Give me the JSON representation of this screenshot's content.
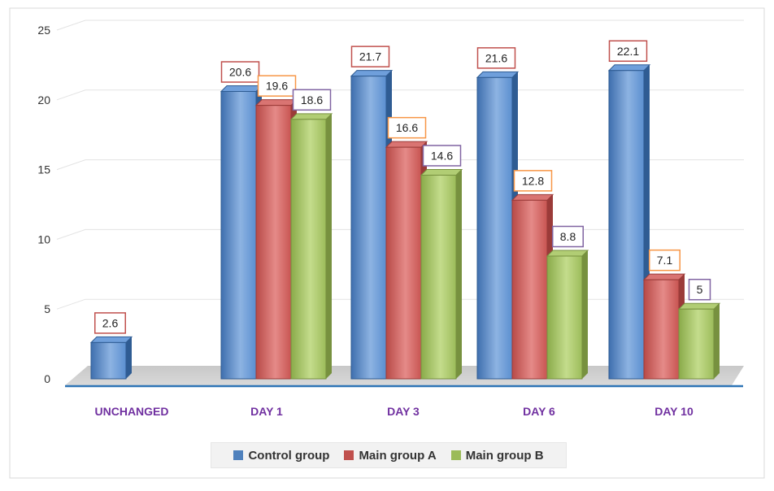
{
  "chart_data": {
    "type": "bar",
    "categories": [
      "UNCHANGED",
      "DAY 1",
      "DAY 3",
      "DAY 6",
      "DAY 10"
    ],
    "series": [
      {
        "name": "Control group",
        "values": [
          2.6,
          20.6,
          21.7,
          21.6,
          22.1
        ],
        "color": "#4f81bd",
        "label_border": "#c0504d"
      },
      {
        "name": "Main group A",
        "values": [
          null,
          19.6,
          16.6,
          12.8,
          7.1
        ],
        "color": "#c0504d",
        "label_border": "#f79646"
      },
      {
        "name": "Main group B",
        "values": [
          null,
          18.6,
          14.6,
          8.8,
          5
        ],
        "color": "#9bbb59",
        "label_border": "#8064a2"
      }
    ],
    "ylim": [
      0,
      25
    ],
    "yticks": [
      0,
      5,
      10,
      15,
      20,
      25
    ],
    "grid": true,
    "legend": "bottom",
    "category_label_color": "#7030a0"
  }
}
